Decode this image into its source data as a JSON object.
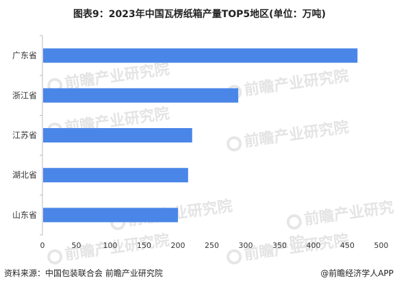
{
  "title": "图表9：2023年中国瓦楞纸箱产量TOP5地区(单位：万吨)",
  "footer": {
    "source": "资料来源：中国包装联合会 前瞻产业研究院",
    "brand": "@前瞻经济学人APP"
  },
  "watermark": "前瞻产业研究院",
  "colors": {
    "bar": "#4a86e8",
    "axis": "#bbbbbb",
    "text": "#333333"
  },
  "chart_data": {
    "type": "bar",
    "orientation": "horizontal",
    "title": "图表9：2023年中国瓦楞纸箱产量TOP5地区(单位：万吨)",
    "categories": [
      "广东省",
      "浙江省",
      "江苏省",
      "湖北省",
      "山东省"
    ],
    "values": [
      465,
      289,
      221,
      215,
      200
    ],
    "xlim": [
      0,
      500
    ],
    "xticks": [
      0,
      50,
      100,
      150,
      200,
      250,
      300,
      350,
      400,
      450,
      500
    ],
    "grid": false,
    "legend": "none"
  }
}
